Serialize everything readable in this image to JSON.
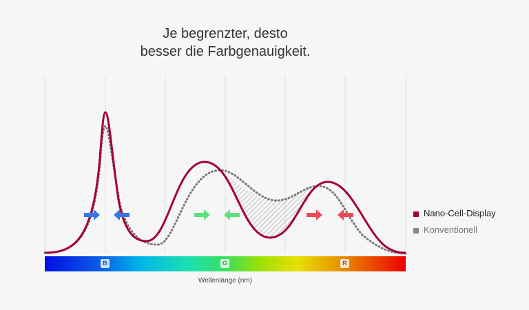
{
  "title_line1": "Je begrenzter, desto",
  "title_line2": "besser die Farbgenauigkeit.",
  "legend": [
    {
      "label": "Nano-Cell-Display",
      "color": "#a50034"
    },
    {
      "label": "Konventionell",
      "color": "#888888"
    }
  ],
  "spectrum_labels": {
    "b": "B",
    "g": "G",
    "r": "R"
  },
  "xlabel": "Wellenlänge (nm)",
  "colors": {
    "nano": "#a50034",
    "conventional": "#777777",
    "blue_arrow": "#3476e8",
    "green_arrow": "#5ee07c",
    "red_arrow": "#ee4a55"
  }
}
